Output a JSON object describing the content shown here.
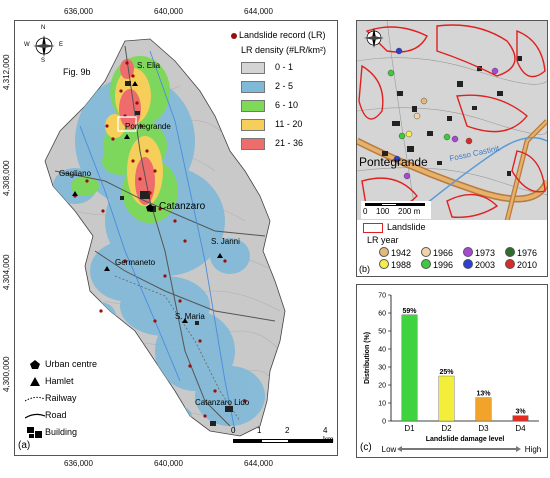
{
  "axes": {
    "x_ticks_top": [
      "636,000",
      "640,000",
      "644,000"
    ],
    "x_ticks_bottom": [
      "636,000",
      "640,000",
      "644,000"
    ],
    "y_ticks": [
      "4,312,000",
      "4,308,000",
      "4,304,000",
      "4,300,000"
    ]
  },
  "panel_a": {
    "fig_ref": "Fig. 9b",
    "places": [
      "S. Elia",
      "Pontegrande",
      "Gagliano",
      "Catanzaro",
      "S. Janni",
      "Germaneto",
      "S. Maria",
      "Catanzaro Lido"
    ],
    "legend_lr": {
      "record_label": "Landslide record (LR)",
      "density_title": "LR density (#LR/km²)",
      "classes": [
        {
          "label": "0 - 1",
          "color": "#d4d4d4"
        },
        {
          "label": "2 - 5",
          "color": "#7fb9d8"
        },
        {
          "label": "6 - 10",
          "color": "#7ed957"
        },
        {
          "label": "11 - 20",
          "color": "#f5cf5a"
        },
        {
          "label": "21 - 36",
          "color": "#ee6c6c"
        }
      ]
    },
    "legend_symbols": [
      "Urban centre",
      "Hamlet",
      "Railway",
      "Road",
      "Building"
    ],
    "scale": [
      "0",
      "1",
      "2",
      "4 km"
    ],
    "tag": "(a)"
  },
  "panel_b": {
    "place": "Pontegrande",
    "street": "Fosso Castinit",
    "scale": [
      "0",
      "100",
      "200 m"
    ],
    "landslide_label": "Landslide",
    "year_title": "LR year",
    "years": [
      {
        "label": "1942",
        "color": "#e4b87a"
      },
      {
        "label": "1966",
        "color": "#f2d3a8"
      },
      {
        "label": "1973",
        "color": "#a64ad6"
      },
      {
        "label": "1976",
        "color": "#2d6e2d"
      },
      {
        "label": "1988",
        "color": "#f4ee4a"
      },
      {
        "label": "1996",
        "color": "#3ec93e"
      },
      {
        "label": "2003",
        "color": "#2b3fd1"
      },
      {
        "label": "2010",
        "color": "#d92b2b"
      }
    ],
    "tag": "(b)"
  },
  "panel_c": {
    "tag": "(c)",
    "chart_data": {
      "type": "bar",
      "categories": [
        "D1",
        "D2",
        "D3",
        "D4"
      ],
      "values": [
        59,
        25,
        13,
        3
      ],
      "value_labels": [
        "59%",
        "25%",
        "13%",
        "3%"
      ],
      "colors": [
        "#3fd43f",
        "#f2ee3a",
        "#f2a32a",
        "#e52a1e"
      ],
      "xlabel": "Landslide damage level",
      "ylabel": "Distribution (%)",
      "ylim": [
        0,
        70
      ],
      "yticks": [
        0,
        10,
        20,
        30,
        40,
        50,
        60,
        70
      ],
      "low_label": "Low",
      "high_label": "High"
    }
  },
  "compass": {
    "n": "N",
    "s": "S",
    "e": "E",
    "w": "W"
  }
}
